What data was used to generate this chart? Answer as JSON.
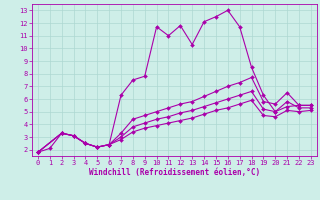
{
  "background_color": "#ceeee8",
  "grid_color": "#aed8d2",
  "line_color": "#aa00aa",
  "xlabel": "Windchill (Refroidissement éolien,°C)",
  "xlim": [
    -0.5,
    23.5
  ],
  "ylim": [
    1.5,
    13.5
  ],
  "yticks": [
    2,
    3,
    4,
    5,
    6,
    7,
    8,
    9,
    10,
    11,
    12,
    13
  ],
  "xticks": [
    0,
    1,
    2,
    3,
    4,
    5,
    6,
    7,
    8,
    9,
    10,
    11,
    12,
    13,
    14,
    15,
    16,
    17,
    18,
    19,
    20,
    21,
    22,
    23
  ],
  "line1_x": [
    0,
    1,
    2,
    3,
    4,
    5,
    6,
    7,
    8,
    9,
    10,
    11,
    12,
    13,
    14,
    15,
    16,
    17,
    18,
    19,
    20,
    21,
    22,
    23
  ],
  "line1_y": [
    1.8,
    2.1,
    3.3,
    3.1,
    2.5,
    2.2,
    2.4,
    6.3,
    7.5,
    7.8,
    11.7,
    11.0,
    11.8,
    10.3,
    12.1,
    12.5,
    13.0,
    11.7,
    8.5,
    6.3,
    5.0,
    5.4,
    5.5,
    5.5
  ],
  "line2_x": [
    0,
    2,
    3,
    4,
    5,
    6,
    7,
    8,
    9,
    10,
    11,
    12,
    13,
    14,
    15,
    16,
    17,
    18,
    19,
    20,
    21,
    22,
    23
  ],
  "line2_y": [
    1.8,
    3.3,
    3.1,
    2.5,
    2.2,
    2.4,
    3.3,
    4.4,
    4.7,
    5.0,
    5.3,
    5.6,
    5.8,
    6.2,
    6.6,
    7.0,
    7.3,
    7.7,
    5.8,
    5.6,
    6.5,
    5.5,
    5.5
  ],
  "line3_x": [
    0,
    2,
    3,
    4,
    5,
    6,
    7,
    8,
    9,
    10,
    11,
    12,
    13,
    14,
    15,
    16,
    17,
    18,
    19,
    20,
    21,
    22,
    23
  ],
  "line3_y": [
    1.8,
    3.3,
    3.1,
    2.5,
    2.2,
    2.4,
    3.0,
    3.8,
    4.1,
    4.4,
    4.6,
    4.9,
    5.1,
    5.4,
    5.7,
    6.0,
    6.3,
    6.6,
    5.2,
    5.0,
    5.8,
    5.3,
    5.3
  ],
  "line4_x": [
    0,
    2,
    3,
    4,
    5,
    6,
    7,
    8,
    9,
    10,
    11,
    12,
    13,
    14,
    15,
    16,
    17,
    18,
    19,
    20,
    21,
    22,
    23
  ],
  "line4_y": [
    1.8,
    3.3,
    3.1,
    2.5,
    2.2,
    2.4,
    2.8,
    3.4,
    3.7,
    3.9,
    4.1,
    4.3,
    4.5,
    4.8,
    5.1,
    5.3,
    5.6,
    5.9,
    4.7,
    4.6,
    5.1,
    5.0,
    5.1
  ]
}
